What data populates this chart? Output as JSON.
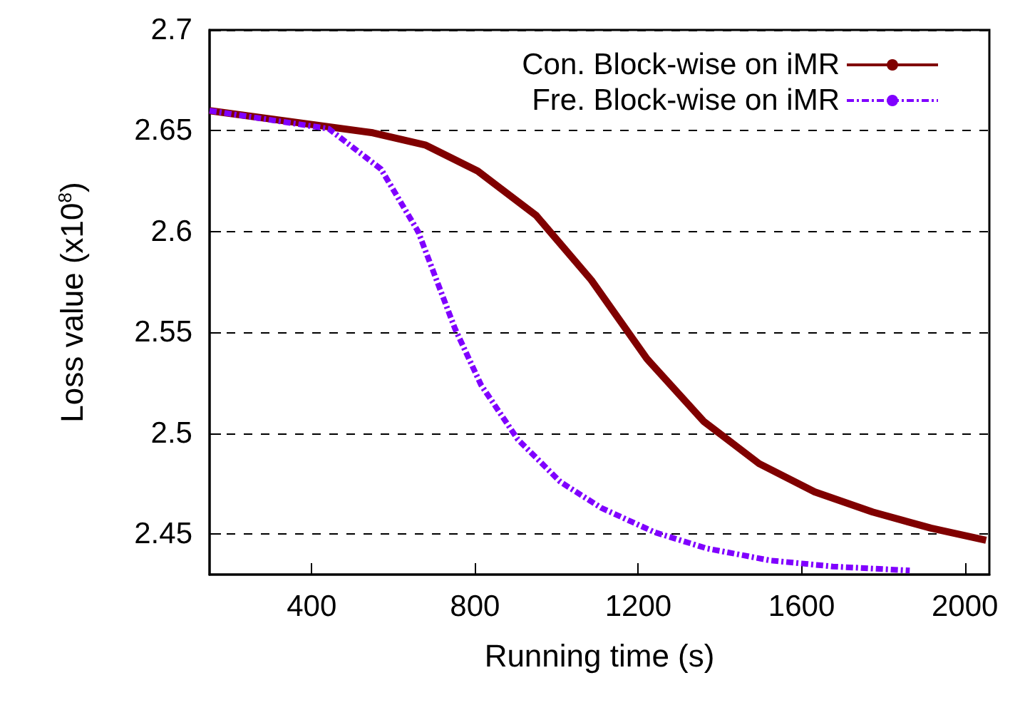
{
  "chart_data": {
    "type": "line",
    "xlabel": "Running time (s)",
    "ylabel": "Loss value (x10$^{8}$)",
    "xlim": [
      150,
      2060
    ],
    "xticks": [
      400,
      800,
      1200,
      1600,
      2000
    ],
    "ylim": [
      2.43,
      2.7
    ],
    "yticks": [
      2.45,
      2.5,
      2.55,
      2.6,
      2.65,
      2.7
    ],
    "grid": "y",
    "legend": "top right",
    "marker": "none",
    "series": [
      {
        "name": "Con. Block-wise on iMR",
        "color": "#800000",
        "line_style": "solid",
        "x": [
          150,
          550,
          678,
          807,
          950,
          1085,
          1221,
          1360,
          1496,
          1632,
          1774,
          1917,
          2052
        ],
        "values": [
          2.66,
          2.649,
          2.643,
          2.63,
          2.608,
          2.576,
          2.537,
          2.506,
          2.485,
          2.471,
          2.461,
          2.453,
          2.447
        ]
      },
      {
        "name": "Fre. Block-wise on iMR",
        "color": "#8000ff",
        "line_style": "dashed",
        "x": [
          150,
          442,
          570,
          661,
          751,
          815,
          905,
          1009,
          1110,
          1240,
          1367,
          1523,
          1677,
          1865
        ],
        "values": [
          2.66,
          2.651,
          2.631,
          2.6,
          2.552,
          2.524,
          2.497,
          2.476,
          2.463,
          2.451,
          2.443,
          2.437,
          2.434,
          2.432
        ]
      }
    ]
  }
}
